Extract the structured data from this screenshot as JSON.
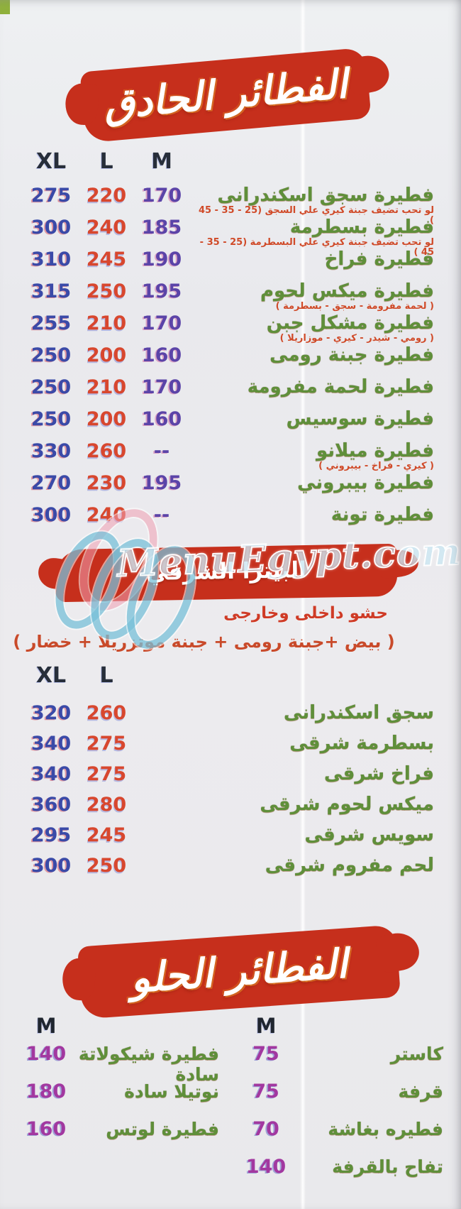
{
  "watermark": {
    "text": "MenuEgypt.com"
  },
  "colors": {
    "banner_red": "#c62f1c",
    "item_name_green": "#5f8f3a",
    "note_red": "#d04a28",
    "price_xl_blue": "#3a4aa8",
    "price_l_red": "#d8472e",
    "price_m_purple": "#5b44a8",
    "price_sweet_magenta": "#a238a0",
    "corner_green": "#90b13c"
  },
  "sections": [
    {
      "id": "savory-pies",
      "title": "الفطائر الحادق",
      "columns": [
        "XL",
        "L",
        "M"
      ],
      "items": [
        {
          "name": "فطيرة سجق اسكندرانى",
          "note": "لو تحب تضيف جبنة كيري علي السجق (25 - 35 - 45 )",
          "prices": [
            "275",
            "220",
            "170"
          ]
        },
        {
          "name": "فطيرة بسطرمة",
          "note": "لو تحب تضيف جبنة كيري علي البسطرمة (25 - 35 - 45 )",
          "prices": [
            "300",
            "240",
            "185"
          ]
        },
        {
          "name": "فطيرة فراخ",
          "prices": [
            "310",
            "245",
            "190"
          ]
        },
        {
          "name": "فطيرة ميكس لحوم",
          "note": "( لحمة مفرومة - سجق - بسطرمة )",
          "prices": [
            "315",
            "250",
            "195"
          ]
        },
        {
          "name": "فطيرة مشكل جبن",
          "note": "( رومي - شيدر - كيري - موزاريلا )",
          "prices": [
            "255",
            "210",
            "170"
          ]
        },
        {
          "name": "فطيرة جبنة رومى",
          "prices": [
            "250",
            "200",
            "160"
          ]
        },
        {
          "name": "فطيرة لحمة مفرومة",
          "prices": [
            "250",
            "210",
            "170"
          ]
        },
        {
          "name": "فطيرة سوسيس",
          "prices": [
            "250",
            "200",
            "160"
          ]
        },
        {
          "name": "فطيرة ميلانو",
          "note": "( كيري - فراخ - بيبروني )",
          "prices": [
            "330",
            "260",
            "--"
          ]
        },
        {
          "name": "فطيرة بيبروني",
          "prices": [
            "270",
            "230",
            "195"
          ]
        },
        {
          "name": "فطيرة تونة",
          "prices": [
            "300",
            "240",
            "--"
          ]
        }
      ]
    },
    {
      "id": "eastern-pizza",
      "title": "البيتزا الشرقي",
      "subtitle": "حشو داخلى وخارجى",
      "ingredients": "( بيض +جبنة رومى + جبنة موتزريلا + خضار )",
      "columns": [
        "XL",
        "L"
      ],
      "items": [
        {
          "name": "سجق اسكندرانى",
          "prices": [
            "320",
            "260"
          ]
        },
        {
          "name": "بسطرمة شرقى",
          "prices": [
            "340",
            "275"
          ]
        },
        {
          "name": "فراخ شرقى",
          "prices": [
            "340",
            "275"
          ]
        },
        {
          "name": "ميكس لحوم شرقى",
          "prices": [
            "360",
            "280"
          ]
        },
        {
          "name": "سويس شرقى",
          "prices": [
            "295",
            "245"
          ]
        },
        {
          "name": "لحم مفروم شرقى",
          "prices": [
            "300",
            "250"
          ]
        }
      ]
    },
    {
      "id": "sweet-pies",
      "title": "الفطائر الحلو",
      "right_column": {
        "header": "M",
        "items": [
          {
            "name": "كاستر",
            "prices": [
              "75"
            ]
          },
          {
            "name": "قرفة",
            "prices": [
              "75"
            ]
          },
          {
            "name": "فطيره بغاشة",
            "prices": [
              "70"
            ]
          },
          {
            "name": "تفاح بالقرفة",
            "prices": [
              "140"
            ]
          }
        ]
      },
      "left_column": {
        "header": "M",
        "items": [
          {
            "name": "فطيرة شيكولاتة سادة",
            "prices": [
              "140"
            ]
          },
          {
            "name": "نوتيلا سادة",
            "prices": [
              "180"
            ]
          },
          {
            "name": "فطيرة لوتس",
            "prices": [
              "160"
            ]
          }
        ]
      }
    }
  ]
}
